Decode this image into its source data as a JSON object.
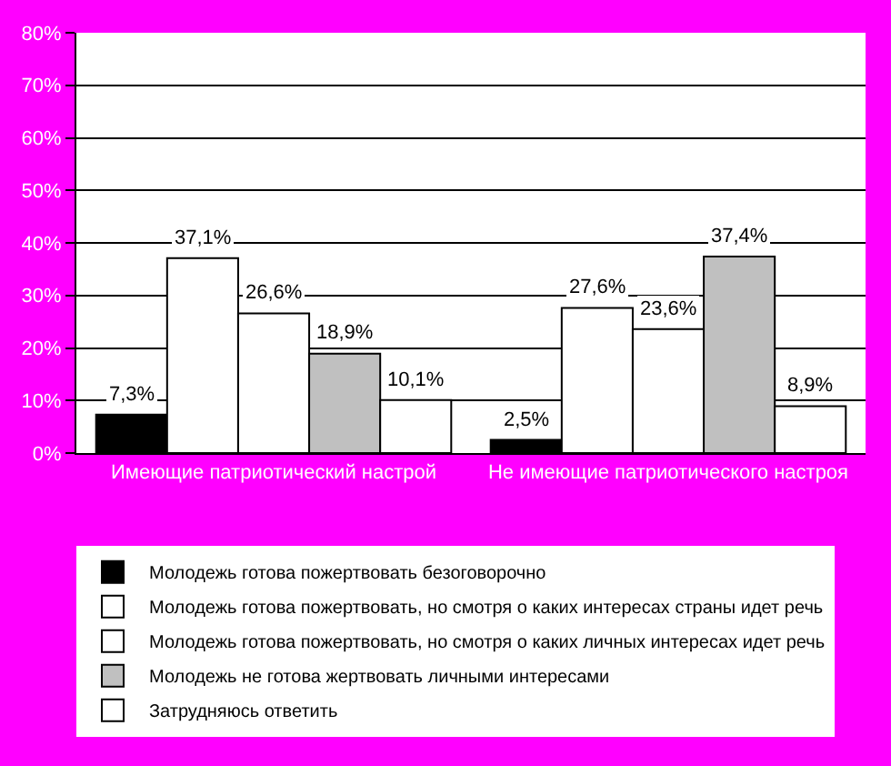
{
  "chart_data": {
    "type": "bar",
    "categories": [
      "Имеющие патриотический настрой",
      "Не имеющие патриотического настроя"
    ],
    "series": [
      {
        "name": "Молодежь готова пожертвовать безоговорочно",
        "color": "#000000",
        "values": [
          7.3,
          2.5
        ],
        "value_labels": [
          "7,3%",
          "2,5%"
        ]
      },
      {
        "name": "Молодежь готова пожертвовать, но смотря о каких интересах страны идет речь",
        "color": "#ffffff",
        "values": [
          37.1,
          27.6
        ],
        "value_labels": [
          "37,1%",
          "27,6%"
        ]
      },
      {
        "name": "Молодежь готова пожертвовать, но смотря о каких личных интересах идет речь",
        "color": "#ffffff",
        "values": [
          26.6,
          23.6
        ],
        "value_labels": [
          "26,6%",
          "23,6%"
        ]
      },
      {
        "name": "Молодежь не готова жертвовать личными интересами",
        "color": "#c0c0c0",
        "values": [
          18.9,
          37.4
        ],
        "value_labels": [
          "18,9%",
          "37,4%"
        ]
      },
      {
        "name": "Затрудняюсь ответить",
        "color": "#ffffff",
        "values": [
          10.1,
          8.9
        ],
        "value_labels": [
          "10,1%",
          "8,9%"
        ]
      }
    ],
    "ylim": [
      0,
      80
    ],
    "yticks": [
      {
        "value": 0,
        "label": "0%"
      },
      {
        "value": 10,
        "label": "10%"
      },
      {
        "value": 20,
        "label": "20%"
      },
      {
        "value": 30,
        "label": "30%"
      },
      {
        "value": 40,
        "label": "40%"
      },
      {
        "value": 50,
        "label": "50%"
      },
      {
        "value": 60,
        "label": "60%"
      },
      {
        "value": 70,
        "label": "70%"
      },
      {
        "value": 80,
        "label": "80%"
      }
    ],
    "grid": "y",
    "legend": "bottom"
  }
}
